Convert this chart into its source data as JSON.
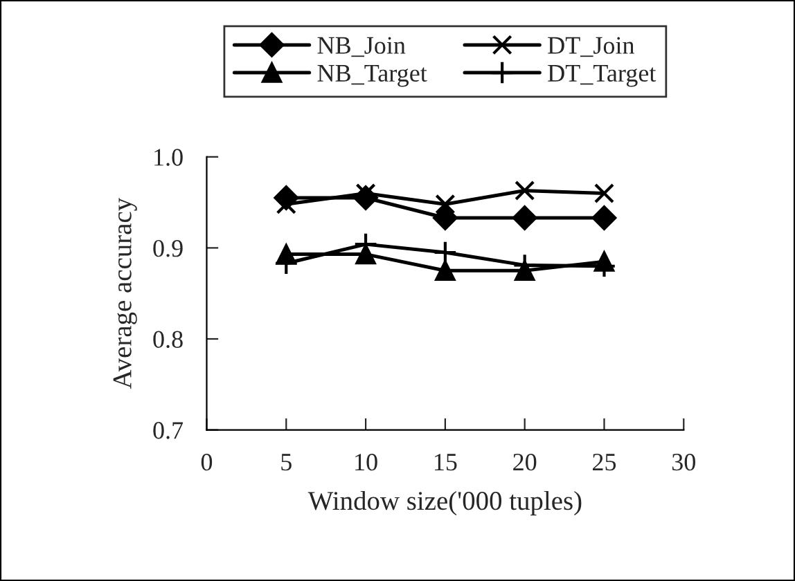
{
  "chart_data": {
    "type": "line",
    "xlabel": "Window size('000 tuples)",
    "ylabel": "Average accuracy",
    "x": [
      5,
      10,
      15,
      20,
      25
    ],
    "series": [
      {
        "name": "NB_Join",
        "color": "#000000",
        "marker": "diamond",
        "values": [
          0.955,
          0.955,
          0.933,
          0.933,
          0.933
        ]
      },
      {
        "name": "NB_Target",
        "color": "#000000",
        "marker": "triangle",
        "values": [
          0.893,
          0.893,
          0.875,
          0.875,
          0.885
        ]
      },
      {
        "name": "DT_Join",
        "color": "#000000",
        "marker": "cross",
        "values": [
          0.948,
          0.96,
          0.948,
          0.963,
          0.96
        ]
      },
      {
        "name": "DT_Target",
        "color": "#000000",
        "marker": "plus",
        "values": [
          0.883,
          0.904,
          0.895,
          0.881,
          0.88
        ]
      }
    ],
    "xlim": [
      0,
      30
    ],
    "xticks": [
      0,
      5,
      10,
      15,
      20,
      25,
      30
    ],
    "ylim": [
      0.7,
      1.0
    ],
    "yticks": [
      0.7,
      0.8,
      0.9,
      {
        "value": 1.0,
        "label": "1.0"
      }
    ],
    "grid": false,
    "legend": "top",
    "line_style": "solid"
  }
}
